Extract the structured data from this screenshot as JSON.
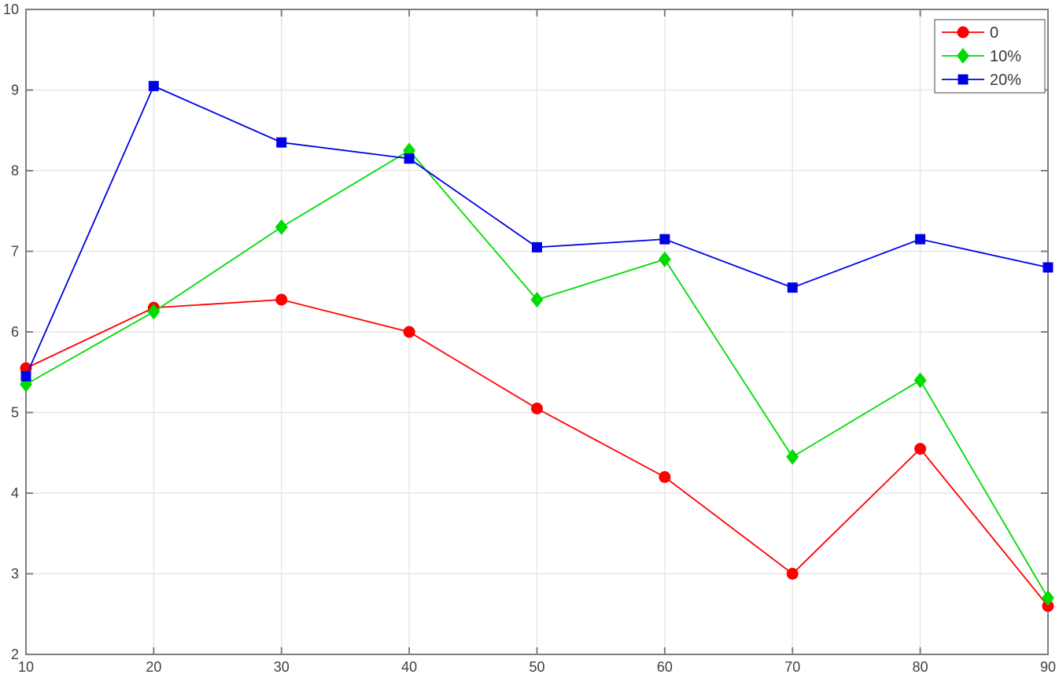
{
  "chart_data": {
    "type": "line",
    "x": [
      10,
      20,
      30,
      40,
      50,
      60,
      70,
      80,
      90
    ],
    "series": [
      {
        "name": "0",
        "color": "#FF0000",
        "marker": "circle",
        "values": [
          5.55,
          6.3,
          6.4,
          6.0,
          5.05,
          4.2,
          3.0,
          4.55,
          2.6
        ]
      },
      {
        "name": "10%",
        "color": "#00DC00",
        "marker": "diamond",
        "values": [
          5.35,
          6.25,
          7.3,
          8.25,
          6.4,
          6.9,
          4.45,
          5.4,
          2.7
        ]
      },
      {
        "name": "20%",
        "color": "#0000E6",
        "marker": "square",
        "values": [
          5.45,
          9.05,
          8.35,
          8.15,
          7.05,
          7.15,
          6.55,
          7.15,
          6.8
        ]
      }
    ],
    "title": "",
    "xlabel": "",
    "ylabel": "",
    "xlim": [
      10,
      90
    ],
    "ylim": [
      2,
      10
    ],
    "xticks": [
      10,
      20,
      30,
      40,
      50,
      60,
      70,
      80,
      90
    ],
    "yticks": [
      2,
      3,
      4,
      5,
      6,
      7,
      8,
      9,
      10
    ],
    "grid": true,
    "legend_position": "top-right",
    "colors": {
      "grid": "#E6E6E6",
      "axis": "#7F7F7F",
      "tick_label": "#404040",
      "legend_border": "#8C8C8C",
      "legend_text": "#383838",
      "background": "#FFFFFF"
    }
  }
}
